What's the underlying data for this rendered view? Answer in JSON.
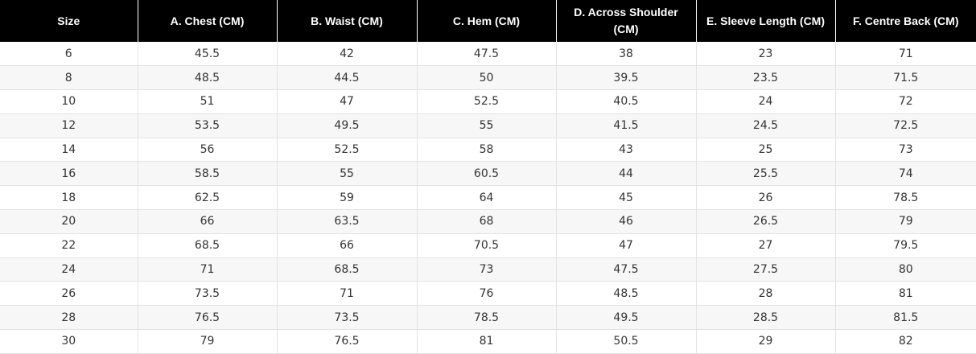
{
  "table": {
    "headers": [
      "Size",
      "A. Chest (CM)",
      "B. Waist (CM)",
      "C. Hem (CM)",
      "D. Across Shoulder (CM)",
      "E. Sleeve Length (CM)",
      "F. Centre Back (CM)"
    ],
    "rows": [
      [
        "6",
        "45.5",
        "42",
        "47.5",
        "38",
        "23",
        "71"
      ],
      [
        "8",
        "48.5",
        "44.5",
        "50",
        "39.5",
        "23.5",
        "71.5"
      ],
      [
        "10",
        "51",
        "47",
        "52.5",
        "40.5",
        "24",
        "72"
      ],
      [
        "12",
        "53.5",
        "49.5",
        "55",
        "41.5",
        "24.5",
        "72.5"
      ],
      [
        "14",
        "56",
        "52.5",
        "58",
        "43",
        "25",
        "73"
      ],
      [
        "16",
        "58.5",
        "55",
        "60.5",
        "44",
        "25.5",
        "74"
      ],
      [
        "18",
        "62.5",
        "59",
        "64",
        "45",
        "26",
        "78.5"
      ],
      [
        "20",
        "66",
        "63.5",
        "68",
        "46",
        "26.5",
        "79"
      ],
      [
        "22",
        "68.5",
        "66",
        "70.5",
        "47",
        "27",
        "79.5"
      ],
      [
        "24",
        "71",
        "68.5",
        "73",
        "47.5",
        "27.5",
        "80"
      ],
      [
        "26",
        "73.5",
        "71",
        "76",
        "48.5",
        "28",
        "81"
      ],
      [
        "28",
        "76.5",
        "73.5",
        "78.5",
        "49.5",
        "28.5",
        "81.5"
      ],
      [
        "30",
        "79",
        "76.5",
        "81",
        "50.5",
        "29",
        "82"
      ]
    ]
  },
  "colors": {
    "header_background": "#000000",
    "header_text": "#ffffff",
    "stripe": "#f7f7f7",
    "grid": "#e3e3e3"
  }
}
